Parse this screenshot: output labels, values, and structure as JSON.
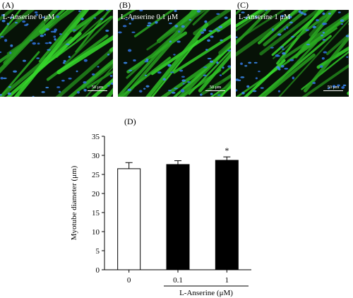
{
  "panels": [
    {
      "label": "(A)",
      "title": "L-Anserine 0 μM",
      "scale": "50 μm"
    },
    {
      "label": "(B)",
      "title": "L-Anserine 0.1 μM",
      "scale": "50 μm"
    },
    {
      "label": "(C)",
      "title": "L-Anserine 1 μM",
      "scale": "50 μm"
    }
  ],
  "chart_label": "(D)",
  "chart_data": {
    "type": "bar",
    "categories": [
      "0",
      "0.1",
      "1"
    ],
    "values": [
      26.5,
      27.6,
      28.7
    ],
    "errors": [
      1.6,
      1.0,
      0.9
    ],
    "bar_fills": [
      "#ffffff",
      "#000000",
      "#000000"
    ],
    "significance": [
      "",
      "",
      "*"
    ],
    "ylabel": "Myotube diameter (μm)",
    "xlabel": "L-Anserine (μM)",
    "ylim": [
      0,
      35
    ],
    "yticks": [
      0,
      5,
      10,
      15,
      20,
      25,
      30,
      35
    ],
    "grid": false
  }
}
